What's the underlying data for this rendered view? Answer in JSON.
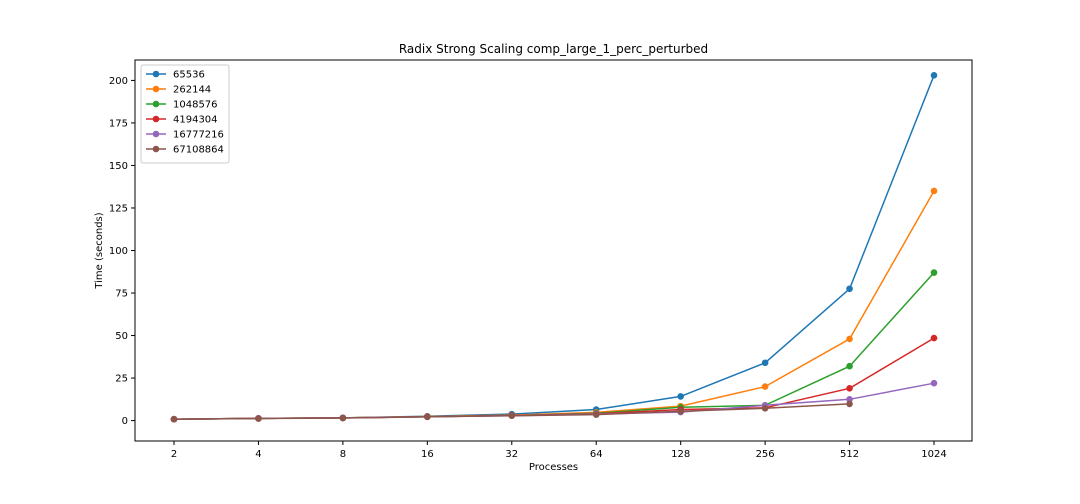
{
  "chart_data": {
    "type": "line",
    "title": "Radix Strong Scaling comp_large_1_perc_perturbed",
    "xlabel": "Processes",
    "ylabel": "Time (seconds)",
    "categories": [
      "2",
      "4",
      "8",
      "16",
      "32",
      "64",
      "128",
      "256",
      "512",
      "1024"
    ],
    "ylim": [
      -12,
      212
    ],
    "yticks": [
      0,
      25,
      50,
      75,
      100,
      125,
      150,
      175,
      200
    ],
    "grid": false,
    "legend_position": "top-left",
    "series": [
      {
        "name": "65536",
        "color": "#1f77b4",
        "values": [
          0.8,
          1.3,
          1.6,
          2.5,
          3.8,
          6.5,
          14.2,
          34.0,
          77.5,
          203.0
        ]
      },
      {
        "name": "262144",
        "color": "#ff7f0e",
        "values": [
          0.8,
          1.3,
          1.6,
          2.4,
          3.2,
          4.8,
          8.5,
          20.0,
          48.0,
          135.0
        ]
      },
      {
        "name": "1048576",
        "color": "#2ca02c",
        "values": [
          0.8,
          1.3,
          1.6,
          2.3,
          3.0,
          4.3,
          7.8,
          9.0,
          32.0,
          87.0
        ]
      },
      {
        "name": "4194304",
        "color": "#d62728",
        "values": [
          0.8,
          1.3,
          1.6,
          2.3,
          3.0,
          4.0,
          6.5,
          7.5,
          19.0,
          48.5
        ]
      },
      {
        "name": "16777216",
        "color": "#9467bd",
        "values": [
          0.8,
          1.3,
          1.6,
          2.2,
          2.9,
          3.8,
          5.0,
          9.0,
          12.5,
          22.0
        ]
      },
      {
        "name": "67108864",
        "color": "#8c564b",
        "values": [
          0.8,
          1.2,
          1.5,
          2.2,
          2.9,
          3.5,
          5.5,
          7.2,
          9.8,
          null
        ]
      }
    ]
  }
}
